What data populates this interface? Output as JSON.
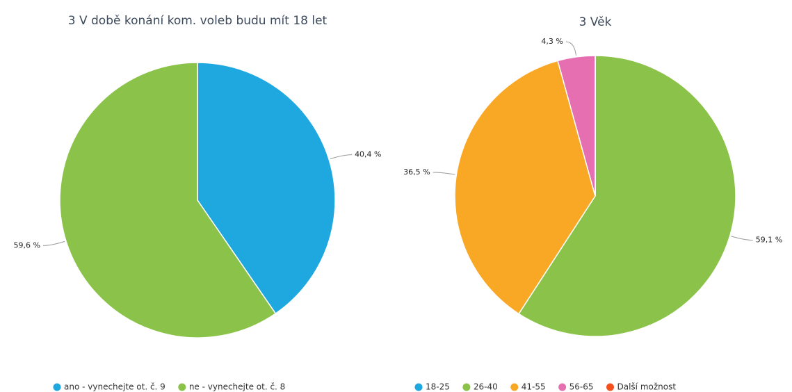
{
  "chart_data": [
    {
      "type": "pie",
      "title": "3 V době konání kom. voleb budu mít 18 let",
      "categories": [
        "ano - vynechejte ot. č. 9",
        "ne - vynechejte ot. č. 8"
      ],
      "values": [
        40.4,
        59.6
      ],
      "value_labels": [
        "40,4 %",
        "59,6 %"
      ],
      "colors": [
        "#1fa8e0",
        "#8bc34a"
      ]
    },
    {
      "type": "pie",
      "title": "3 Věk",
      "categories": [
        "18-25",
        "26-40",
        "41-55",
        "56-65",
        "Další možnost"
      ],
      "values": [
        0,
        59.1,
        36.5,
        4.3,
        0
      ],
      "value_labels": [
        null,
        "59,1 %",
        "36,5 %",
        "4,3 %",
        null
      ],
      "colors": [
        "#1fa8e0",
        "#8bc34a",
        "#f9a825",
        "#e56fb0",
        "#f4511e"
      ]
    }
  ]
}
